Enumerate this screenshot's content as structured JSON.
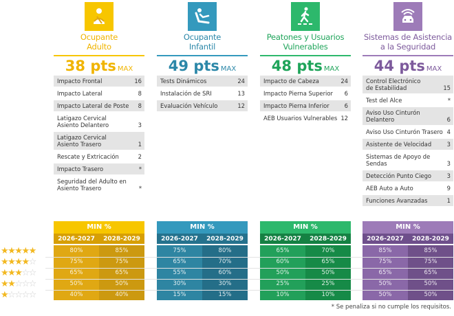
{
  "categories": [
    {
      "key": "adult",
      "title": "Ocupante\nAdulto",
      "points": "38 pts",
      "max_label": "MAX",
      "icon": "seatbelt-person-icon",
      "color": "#f0b400",
      "header": "#f7c600",
      "sub": "#d79f05",
      "body1": "#e0a813",
      "body2": "#cc9910",
      "items": [
        {
          "label": "Impacto Frontal",
          "value": "16"
        },
        {
          "label": "Impacto Lateral",
          "value": "8"
        },
        {
          "label": "Impacto Lateral de Poste",
          "value": "8"
        },
        {
          "label": "Latigazo Cervical\nAsiento Delantero",
          "value": "3"
        },
        {
          "label": "Latigazo Cervical\nAsiento Trasero",
          "value": "1"
        },
        {
          "label": "Rescate y Extricación",
          "value": "2"
        },
        {
          "label": "Impacto Trasero",
          "value": "*"
        },
        {
          "label": "Seguridad del Adulto en\nAsiento Trasero",
          "value": "*"
        }
      ],
      "min": {
        "header": "MIN %",
        "years": [
          "2026-2027",
          "2028-2029"
        ],
        "rows": [
          [
            "80%",
            "85%"
          ],
          [
            "75%",
            "75%"
          ],
          [
            "65%",
            "65%"
          ],
          [
            "50%",
            "50%"
          ],
          [
            "40%",
            "40%"
          ]
        ]
      }
    },
    {
      "key": "child",
      "title": "Ocupante\nInfantil",
      "points": "49 pts",
      "max_label": "MAX",
      "icon": "child-seat-icon",
      "color": "#2b87a8",
      "header": "#3499bd",
      "sub": "#25728d",
      "body1": "#2e85a2",
      "body2": "#246e88",
      "items": [
        {
          "label": "Tests Dinámicos",
          "value": "24"
        },
        {
          "label": "Instalación de SRI",
          "value": "13"
        },
        {
          "label": "Evaluación Vehículo",
          "value": "12"
        }
      ],
      "min": {
        "header": "MIN %",
        "years": [
          "2026-2027",
          "2028-2029"
        ],
        "rows": [
          [
            "75%",
            "80%"
          ],
          [
            "65%",
            "70%"
          ],
          [
            "55%",
            "60%"
          ],
          [
            "30%",
            "30%"
          ],
          [
            "15%",
            "15%"
          ]
        ]
      }
    },
    {
      "key": "pedestrian",
      "title": "Peatones y Usuarios\nVulnerables",
      "points": "48 pts",
      "max_label": "MAX",
      "icon": "pedestrian-crossing-icon",
      "color": "#1fa45a",
      "header": "#2db86c",
      "sub": "#158143",
      "body1": "#22a05a",
      "body2": "#168a47",
      "items": [
        {
          "label": "Impacto de Cabeza",
          "value": "24"
        },
        {
          "label": "Impacto Pierna Superior",
          "value": "6"
        },
        {
          "label": "Impacto Pierna Inferior",
          "value": "6"
        },
        {
          "label": "AEB Usuarios Vulnerables",
          "value": "12"
        }
      ],
      "min": {
        "header": "MIN %",
        "years": [
          "2026-2027",
          "2028-2029"
        ],
        "rows": [
          [
            "65%",
            "70%"
          ],
          [
            "60%",
            "65%"
          ],
          [
            "50%",
            "50%"
          ],
          [
            "25%",
            "25%"
          ],
          [
            "10%",
            "10%"
          ]
        ]
      }
    },
    {
      "key": "assist",
      "title": "Sistemas de Asistencia\na la Seguridad",
      "points": "44 pts",
      "max_label": "MAX",
      "icon": "car-signal-icon",
      "color": "#7d5a9c",
      "header": "#9d7bb8",
      "sub": "#6e4f8b",
      "body1": "#8a68a8",
      "body2": "#6f5089",
      "items": [
        {
          "label": "Control Electrónico\nde Estabilidad",
          "value": "15"
        },
        {
          "label": "Test del Alce",
          "value": "*"
        },
        {
          "label": "Aviso Uso Cinturón\nDelantero",
          "value": "6"
        },
        {
          "label": "Aviso Uso Cinturón Trasero",
          "value": "4"
        },
        {
          "label": "Asistente de Velocidad",
          "value": "3"
        },
        {
          "label": "Sistemas de Apoyo de\nSendas",
          "value": "3"
        },
        {
          "label": "Detección Punto Ciego",
          "value": "3"
        },
        {
          "label": "AEB Auto a Auto",
          "value": "9"
        },
        {
          "label": "Funciones Avanzadas",
          "value": "1"
        }
      ],
      "min": {
        "header": "MIN %",
        "years": [
          "2026-2027",
          "2028-2029"
        ],
        "rows": [
          [
            "85%",
            "85%"
          ],
          [
            "75%",
            "75%"
          ],
          [
            "65%",
            "65%"
          ],
          [
            "50%",
            "50%"
          ],
          [
            "50%",
            "50%"
          ]
        ]
      }
    }
  ],
  "star_ratings": [
    5,
    4,
    3,
    2,
    1
  ],
  "footnote": "* Se penaliza si no cumple los requisitos."
}
